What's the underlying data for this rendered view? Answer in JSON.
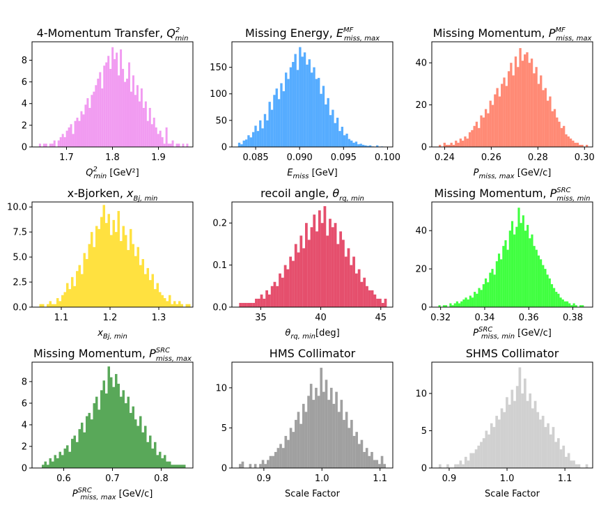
{
  "chart_data": [
    {
      "type": "histogram",
      "title": "4-Momentum Transfer, ",
      "title_sym": "Q",
      "title_sup": "2",
      "title_sub": "min",
      "xlabel": "",
      "xlabel_sym": "Q",
      "xlabel_sup": "2",
      "xlabel_sub": "min",
      "xlabel_unit": " [GeV²]",
      "color": "#ee82ee",
      "alpha": 0.8,
      "xlim": [
        1.625,
        1.975
      ],
      "ylim": [
        0,
        9.7
      ],
      "xticks": [
        1.7,
        1.8,
        1.9
      ],
      "xtick_labels": [
        "1.7",
        "1.8",
        "1.9"
      ],
      "yticks": [
        0,
        2,
        4,
        6,
        8
      ],
      "ytick_labels": [
        "0",
        "2",
        "4",
        "6",
        "8"
      ],
      "bin_range": [
        1.64,
        1.965
      ],
      "counts": [
        0.3,
        0,
        0.3,
        0.3,
        0,
        0.3,
        0.3,
        0.6,
        0,
        0.6,
        0.9,
        1.2,
        0.9,
        1.5,
        1.8,
        2.1,
        1.2,
        2.4,
        2.7,
        2.4,
        3.3,
        3.0,
        3.9,
        4.5,
        3.6,
        4.8,
        5.1,
        5.7,
        6.3,
        6.9,
        5.4,
        7.5,
        7.8,
        8.4,
        7.2,
        9.2,
        8.1,
        8.7,
        6.6,
        9.0,
        7.2,
        6.0,
        6.3,
        7.8,
        5.1,
        6.6,
        4.8,
        5.7,
        4.2,
        5.4,
        3.6,
        4.2,
        2.4,
        3.6,
        2.1,
        2.7,
        1.8,
        1.2,
        1.5,
        0.9,
        0.3,
        1.8,
        0.3,
        0.3,
        0.6,
        0,
        0.3,
        0.3,
        0,
        0.3,
        0,
        0.3
      ]
    },
    {
      "type": "histogram",
      "title": "Missing Energy, ",
      "title_sym": "E",
      "title_sup": "MF",
      "title_sub": "miss, max",
      "xlabel": "",
      "xlabel_sym": "E",
      "xlabel_sup": "",
      "xlabel_sub": "miss",
      "xlabel_unit": " [GeV]",
      "color": "#1e90ff",
      "alpha": 0.75,
      "xlim": [
        0.0823,
        0.1006
      ],
      "ylim": [
        0,
        198
      ],
      "xticks": [
        0.085,
        0.09,
        0.095,
        0.1
      ],
      "xtick_labels": [
        "0.085",
        "0.090",
        "0.095",
        "0.100"
      ],
      "yticks": [
        0,
        50,
        100,
        150
      ],
      "ytick_labels": [
        "0",
        "50",
        "100",
        "150"
      ],
      "bin_range": [
        0.083,
        0.0995
      ],
      "counts": [
        8,
        5,
        12,
        14,
        22,
        18,
        28,
        40,
        30,
        50,
        35,
        62,
        50,
        85,
        70,
        98,
        110,
        90,
        120,
        105,
        140,
        128,
        150,
        160,
        175,
        145,
        188,
        170,
        178,
        155,
        165,
        140,
        150,
        128,
        130,
        100,
        115,
        80,
        92,
        60,
        70,
        45,
        55,
        30,
        38,
        22,
        25,
        15,
        12,
        8,
        10,
        5,
        6,
        4,
        3,
        2,
        3,
        1,
        0,
        3,
        0,
        1
      ]
    },
    {
      "type": "histogram",
      "title": "Missing Momentum, ",
      "title_sym": "P",
      "title_sup": "MF",
      "title_sub": "miss, max",
      "xlabel": "",
      "xlabel_sym": "P",
      "xlabel_sup": "",
      "xlabel_sub": "miss, max",
      "xlabel_unit": " [GeV/c]",
      "color": "#ff6347",
      "alpha": 0.75,
      "xlim": [
        0.2345,
        0.3035
      ],
      "ylim": [
        0,
        50
      ],
      "xticks": [
        0.24,
        0.26,
        0.28,
        0.3
      ],
      "xtick_labels": [
        "0.24",
        "0.26",
        "0.28",
        "0.30"
      ],
      "yticks": [
        0,
        20,
        40
      ],
      "ytick_labels": [
        "0",
        "20",
        "40"
      ],
      "bin_range": [
        0.2375,
        0.3015
      ],
      "counts": [
        1,
        0,
        2,
        1,
        1,
        2,
        1,
        3,
        2,
        4,
        3,
        5,
        4,
        7,
        8,
        10,
        12,
        9,
        15,
        14,
        18,
        16,
        22,
        20,
        25,
        28,
        24,
        30,
        33,
        29,
        36,
        40,
        34,
        43,
        38,
        47,
        41,
        44,
        45,
        40,
        42,
        35,
        38,
        30,
        34,
        27,
        28,
        22,
        24,
        17,
        18,
        14,
        12,
        9,
        10,
        6,
        5,
        4,
        3,
        2,
        2,
        1,
        1,
        0,
        1
      ]
    },
    {
      "type": "histogram",
      "title": "x-Bjorken, ",
      "title_sym": "x",
      "title_sup": "",
      "title_sub": "Bj, min",
      "xlabel": "",
      "xlabel_sym": "x",
      "xlabel_sup": "",
      "xlabel_sub": "Bj, min",
      "xlabel_unit": "",
      "color": "#ffd700",
      "alpha": 0.75,
      "xlim": [
        1.04,
        1.37
      ],
      "ylim": [
        0,
        10.5
      ],
      "xticks": [
        1.1,
        1.2,
        1.3
      ],
      "xtick_labels": [
        "1.1",
        "1.2",
        "1.3"
      ],
      "yticks": [
        0,
        2.5,
        5,
        7.5,
        10
      ],
      "ytick_labels": [
        "0.0",
        "2.5",
        "5.0",
        "7.5",
        "10.0"
      ],
      "bin_range": [
        1.055,
        1.365
      ],
      "counts": [
        0.3,
        0.3,
        0,
        0.3,
        0.6,
        0.3,
        0.3,
        0.9,
        0.6,
        1.2,
        1.5,
        2.4,
        1.8,
        3.0,
        2.1,
        3.6,
        4.2,
        3.3,
        5.4,
        4.8,
        6.3,
        7.5,
        6.0,
        8.1,
        7.8,
        9.0,
        10.2,
        8.4,
        9.3,
        7.2,
        8.7,
        7.5,
        9.6,
        6.6,
        8.1,
        7.2,
        5.7,
        7.8,
        6.3,
        5.1,
        6.0,
        4.2,
        4.8,
        3.3,
        3.9,
        2.7,
        3.3,
        1.8,
        2.4,
        1.5,
        1.2,
        0.9,
        0.6,
        1.2,
        0.3,
        0.6,
        0.3,
        0.6,
        0.3,
        0,
        0.3,
        0.3
      ]
    },
    {
      "type": "histogram",
      "title": "recoil angle, ",
      "title_sym": "θ",
      "title_sup": "",
      "title_sub": "rq, min",
      "xlabel": "",
      "xlabel_sym": "θ",
      "xlabel_sup": "",
      "xlabel_sub": "rq, min",
      "xlabel_unit": "[deg]",
      "color": "#dc143c",
      "alpha": 0.75,
      "xlim": [
        32.6,
        46.0
      ],
      "ylim": [
        0,
        0.25
      ],
      "xticks": [
        35,
        40,
        45
      ],
      "xtick_labels": [
        "35",
        "40",
        "45"
      ],
      "yticks": [
        0,
        0.1,
        0.2
      ],
      "ytick_labels": [
        "0.0",
        "0.1",
        "0.2"
      ],
      "bin_range": [
        33.2,
        45.5
      ],
      "counts": [
        0.01,
        0.01,
        0.01,
        0.01,
        0.01,
        0.01,
        0.02,
        0.02,
        0.03,
        0.02,
        0.04,
        0.03,
        0.05,
        0.06,
        0.05,
        0.08,
        0.07,
        0.1,
        0.09,
        0.12,
        0.11,
        0.15,
        0.13,
        0.17,
        0.14,
        0.2,
        0.16,
        0.19,
        0.22,
        0.18,
        0.23,
        0.2,
        0.24,
        0.17,
        0.21,
        0.19,
        0.2,
        0.15,
        0.18,
        0.16,
        0.12,
        0.14,
        0.1,
        0.12,
        0.08,
        0.09,
        0.06,
        0.07,
        0.05,
        0.04,
        0.04,
        0.03,
        0.02,
        0.02,
        0.01,
        0.02
      ]
    },
    {
      "type": "histogram",
      "title": "Missing Momentum, ",
      "title_sym": "P",
      "title_sup": "SRC",
      "title_sub": "miss, min",
      "xlabel": "",
      "xlabel_sym": "P",
      "xlabel_sup": "SRC",
      "xlabel_sub": "miss, min",
      "xlabel_unit": " [GeV/c]",
      "color": "#00ff00",
      "alpha": 0.75,
      "xlim": [
        0.316,
        0.389
      ],
      "ylim": [
        0,
        55
      ],
      "xticks": [
        0.32,
        0.34,
        0.36,
        0.38
      ],
      "xtick_labels": [
        "0.32",
        "0.34",
        "0.36",
        "0.38"
      ],
      "yticks": [
        0,
        20,
        40
      ],
      "ytick_labels": [
        "0",
        "20",
        "40"
      ],
      "bin_range": [
        0.319,
        0.385
      ],
      "counts": [
        1,
        0,
        1,
        1,
        0,
        2,
        1,
        2,
        3,
        2,
        3,
        4,
        5,
        4,
        6,
        5,
        8,
        7,
        10,
        9,
        12,
        15,
        13,
        18,
        20,
        17,
        24,
        28,
        25,
        32,
        35,
        30,
        40,
        45,
        38,
        42,
        52,
        44,
        48,
        40,
        43,
        36,
        38,
        32,
        30,
        27,
        25,
        22,
        20,
        17,
        15,
        12,
        10,
        8,
        7,
        5,
        4,
        3,
        3,
        2,
        1,
        2,
        1,
        0,
        1,
        1
      ]
    },
    {
      "type": "histogram",
      "title": "Missing Momentum, ",
      "title_sym": "P",
      "title_sup": "SRC",
      "title_sub": "miss, max",
      "xlabel": "",
      "xlabel_sym": "P",
      "xlabel_sup": "SRC",
      "xlabel_sub": "miss, max",
      "xlabel_unit": " [GeV/c]",
      "color": "#228b22",
      "alpha": 0.75,
      "xlim": [
        0.535,
        0.865
      ],
      "ylim": [
        0,
        9.8
      ],
      "xticks": [
        0.6,
        0.7,
        0.8
      ],
      "xtick_labels": [
        "0.6",
        "0.7",
        "0.8"
      ],
      "yticks": [
        0,
        2,
        4,
        6,
        8
      ],
      "ytick_labels": [
        "0",
        "2",
        "4",
        "6",
        "8"
      ],
      "bin_range": [
        0.555,
        0.85
      ],
      "counts": [
        0.3,
        0.6,
        0.3,
        0.9,
        0.6,
        1.2,
        0.9,
        1.5,
        1.2,
        1.8,
        2.1,
        1.5,
        2.7,
        3.0,
        2.4,
        3.6,
        4.2,
        3.3,
        4.8,
        5.1,
        4.5,
        6.0,
        6.6,
        5.4,
        7.2,
        8.1,
        6.9,
        9.4,
        8.4,
        7.5,
        8.7,
        7.8,
        6.6,
        7.2,
        6.0,
        6.6,
        5.1,
        5.7,
        4.5,
        3.9,
        4.8,
        3.3,
        3.9,
        2.4,
        3.0,
        1.8,
        2.4,
        1.2,
        1.5,
        0.9,
        1.2,
        0.6,
        0.6,
        0.3,
        0.3,
        0.3,
        0.3,
        0.3,
        0.3
      ]
    },
    {
      "type": "histogram",
      "title": "HMS Collimator",
      "title_sym": "",
      "title_sup": "",
      "title_sub": "",
      "xlabel": "Scale Factor",
      "xlabel_sym": "",
      "xlabel_sup": "",
      "xlabel_sub": "",
      "xlabel_unit": "",
      "color": "#808080",
      "alpha": 0.75,
      "xlim": [
        0.845,
        1.122
      ],
      "ylim": [
        0,
        13.2
      ],
      "xticks": [
        0.9,
        1.0,
        1.1
      ],
      "xtick_labels": [
        "0.9",
        "1.0",
        "1.1"
      ],
      "yticks": [
        0,
        5,
        10
      ],
      "ytick_labels": [
        "0",
        "5",
        "10"
      ],
      "bin_range": [
        0.857,
        1.11
      ],
      "counts": [
        0.5,
        0.8,
        0,
        0,
        0.5,
        0,
        0.5,
        0,
        0.5,
        1.0,
        0.5,
        1.0,
        1.5,
        1.5,
        2.0,
        2.5,
        3.0,
        2.5,
        4.0,
        3.5,
        5.0,
        4.5,
        6.0,
        7.0,
        5.5,
        8.0,
        7.0,
        9.0,
        10.5,
        8.5,
        10.0,
        9.0,
        12.5,
        9.5,
        11.0,
        8.5,
        10.0,
        8.0,
        9.5,
        7.0,
        8.5,
        6.0,
        7.0,
        5.0,
        6.0,
        4.0,
        4.5,
        3.0,
        3.5,
        2.0,
        2.5,
        1.5,
        2.0,
        1.0,
        1.0,
        0.5,
        1.5,
        0.5
      ]
    },
    {
      "type": "histogram",
      "title": "SHMS Collimator",
      "title_sym": "",
      "title_sup": "",
      "title_sub": "",
      "xlabel": "Scale Factor",
      "xlabel_sym": "",
      "xlabel_sup": "",
      "xlabel_sub": "",
      "xlabel_unit": "",
      "color": "#c0c0c0",
      "alpha": 0.75,
      "xlim": [
        0.87,
        1.148
      ],
      "ylim": [
        0,
        14.2
      ],
      "xticks": [
        0.9,
        1.0,
        1.1
      ],
      "xtick_labels": [
        "0.9",
        "1.0",
        "1.1"
      ],
      "yticks": [
        0,
        5,
        10
      ],
      "ytick_labels": [
        "0",
        "5",
        "10"
      ],
      "bin_range": [
        0.882,
        1.14
      ],
      "counts": [
        0.5,
        0,
        0,
        0.5,
        0,
        0,
        0.5,
        0.5,
        1.0,
        0.5,
        1.5,
        1.0,
        2.0,
        2.0,
        2.5,
        3.0,
        3.5,
        4.0,
        5.0,
        4.5,
        6.0,
        5.5,
        7.0,
        6.5,
        8.0,
        7.5,
        9.5,
        8.5,
        10.5,
        9.0,
        11.0,
        13.5,
        10.0,
        12.0,
        9.0,
        10.0,
        8.0,
        9.0,
        7.5,
        6.5,
        7.0,
        5.5,
        6.0,
        4.5,
        5.5,
        3.5,
        4.0,
        2.5,
        3.0,
        1.5,
        2.0,
        1.0,
        1.0,
        0.5,
        0.5,
        0,
        0,
        0.5
      ]
    }
  ]
}
